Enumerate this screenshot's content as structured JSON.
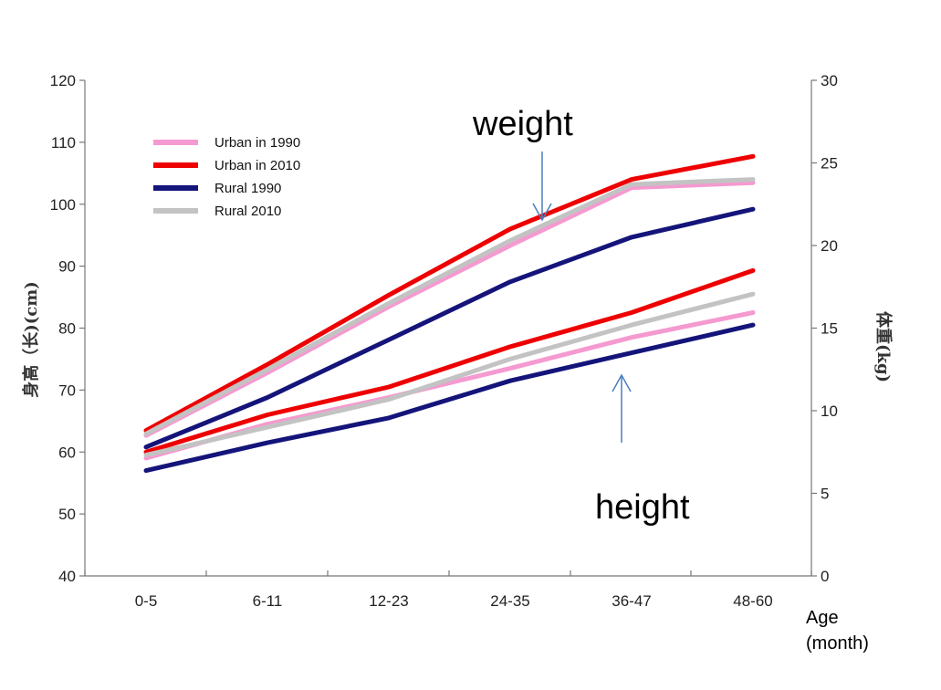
{
  "chart_data": {
    "type": "line",
    "categories": [
      "0-5",
      "6-11",
      "12-23",
      "24-35",
      "36-47",
      "48-60"
    ],
    "x_label": [
      "Age",
      "(month)"
    ],
    "y_left": {
      "label": "身高（长)(cm)",
      "ylim": [
        40,
        120
      ],
      "ticks": [
        "40",
        "50",
        "60",
        "70",
        "80",
        "90",
        "100",
        "110",
        "120"
      ]
    },
    "y_right": {
      "label": "体重(kg)",
      "ylim": [
        0,
        30
      ],
      "ticks": [
        "0",
        "5",
        "10",
        "15",
        "20",
        "25",
        "30"
      ]
    },
    "legend": [
      {
        "name": "Urban in 1990",
        "color": "#f59ad0"
      },
      {
        "name": "Urban in 2010",
        "color": "#ee0000"
      },
      {
        "name": "Rural 1990",
        "color": "#14147a"
      },
      {
        "name": "Rural 2010",
        "color": "#c3c3c3"
      }
    ],
    "annotations": {
      "weight": "weight",
      "height": "height"
    },
    "height_series": [
      {
        "name": "Urban in 1990",
        "color": "#f59ad0",
        "values": [
          59.0,
          64.5,
          68.8,
          73.5,
          78.5,
          82.5
        ]
      },
      {
        "name": "Urban in 2010",
        "color": "#ee0000",
        "values": [
          60.0,
          66.0,
          70.5,
          77.0,
          82.5,
          89.3
        ]
      },
      {
        "name": "Rural 1990",
        "color": "#14147a",
        "values": [
          57.0,
          61.5,
          65.5,
          71.5,
          76.0,
          80.5
        ]
      },
      {
        "name": "Rural 2010",
        "color": "#c3c3c3",
        "values": [
          59.5,
          64.0,
          68.5,
          75.0,
          80.5,
          85.5
        ]
      }
    ],
    "weight_series": [
      {
        "name": "Urban in 1990",
        "color": "#f59ad0",
        "values": [
          8.5,
          12.3,
          16.3,
          20.0,
          23.5,
          23.8
        ]
      },
      {
        "name": "Urban in 2010",
        "color": "#ee0000",
        "values": [
          8.8,
          12.8,
          17.0,
          21.0,
          24.0,
          25.4
        ]
      },
      {
        "name": "Rural 1990",
        "color": "#14147a",
        "values": [
          7.8,
          10.8,
          14.3,
          17.8,
          20.5,
          22.2
        ]
      },
      {
        "name": "Rural 2010",
        "color": "#c3c3c3",
        "values": [
          8.6,
          12.5,
          16.5,
          20.3,
          23.7,
          24.0
        ]
      }
    ]
  }
}
